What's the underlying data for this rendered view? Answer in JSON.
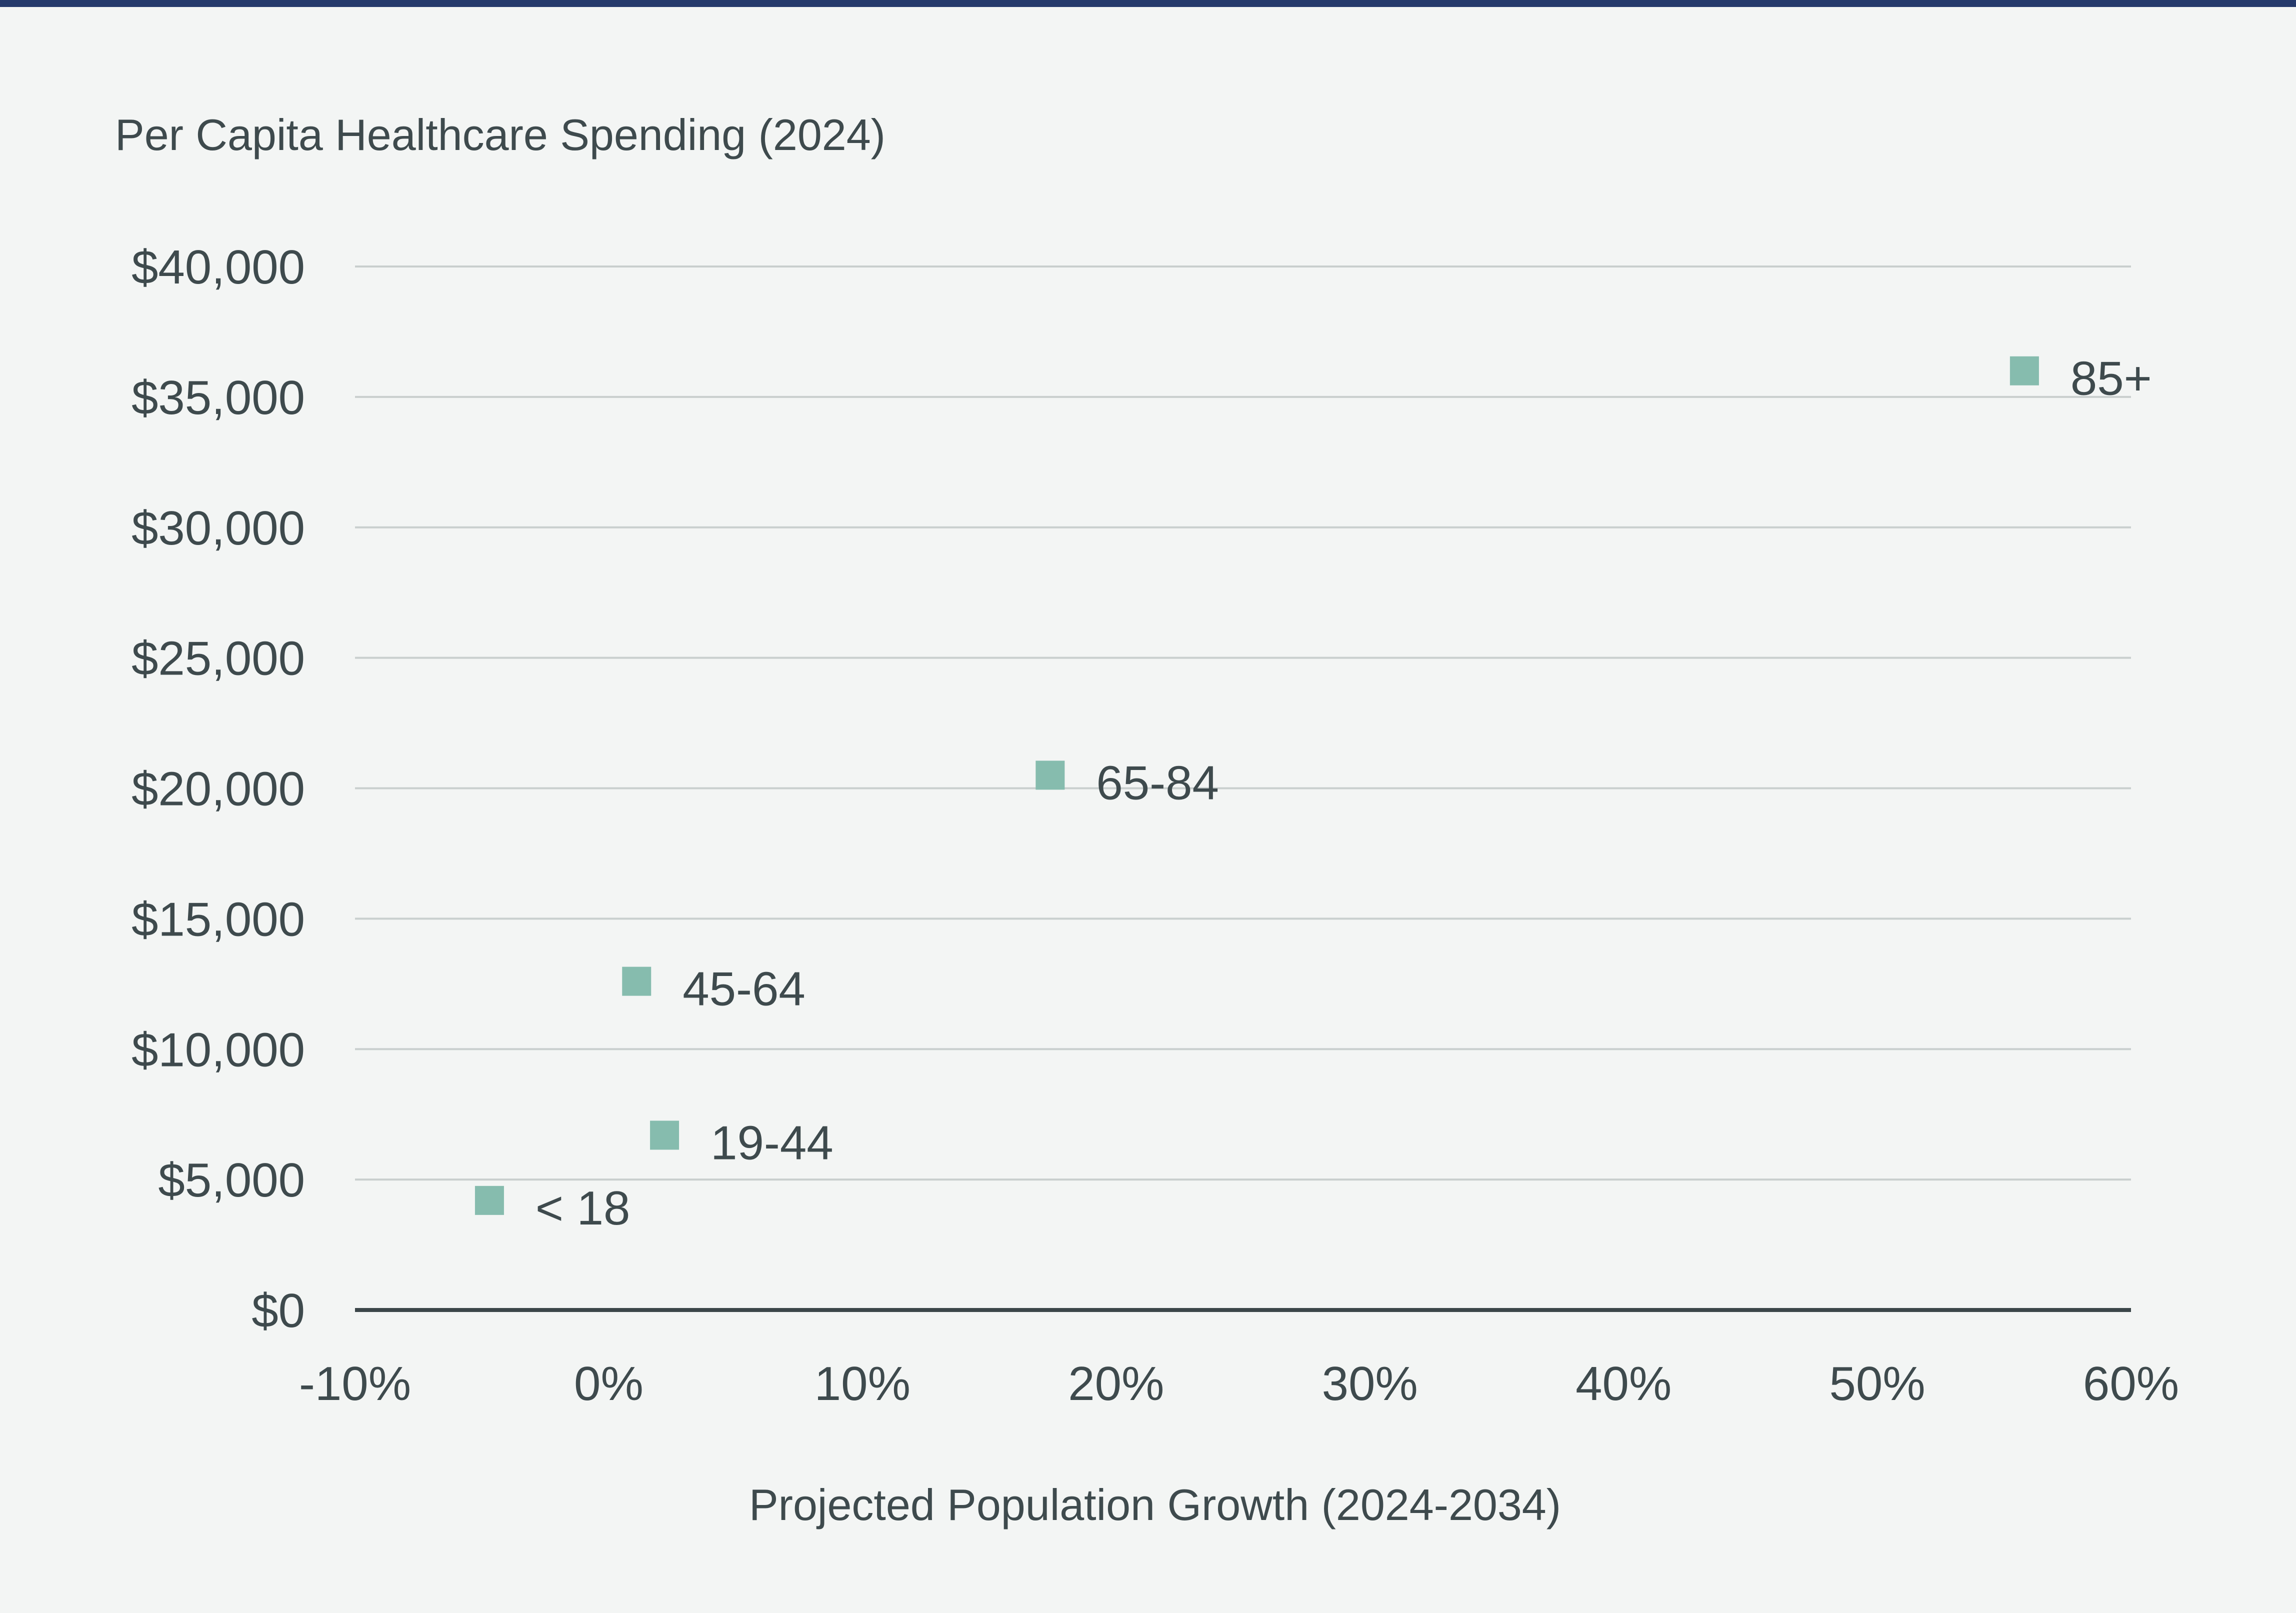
{
  "chart_data": {
    "type": "scatter",
    "title": "",
    "ylabel": "Per Capita Healthcare Spending (2024)",
    "xlabel": "Projected Population Growth (2024-2034)",
    "xlim": [
      -10,
      60
    ],
    "ylim": [
      0,
      40000
    ],
    "x_ticks": [
      -10,
      0,
      10,
      20,
      30,
      40,
      50,
      60
    ],
    "x_tick_labels": [
      "-10%",
      "0%",
      "10%",
      "20%",
      "30%",
      "40%",
      "50%",
      "60%"
    ],
    "y_ticks": [
      0,
      5000,
      10000,
      15000,
      20000,
      25000,
      30000,
      35000,
      40000
    ],
    "y_tick_labels": [
      "$0",
      "$5,000",
      "$10,000",
      "$15,000",
      "$20,000",
      "$25,000",
      "$30,000",
      "$35,000",
      "$40,000"
    ],
    "grid": true,
    "legend": "none",
    "marker_color": "#86bcae",
    "points": [
      {
        "label": "< 18",
        "x": -4.7,
        "y": 4200
      },
      {
        "label": "19-44",
        "x": 2.2,
        "y": 6700
      },
      {
        "label": "45-64",
        "x": 1.1,
        "y": 12600
      },
      {
        "label": "65-84",
        "x": 17.4,
        "y": 20500
      },
      {
        "label": "85+",
        "x": 55.8,
        "y": 36000
      }
    ]
  }
}
